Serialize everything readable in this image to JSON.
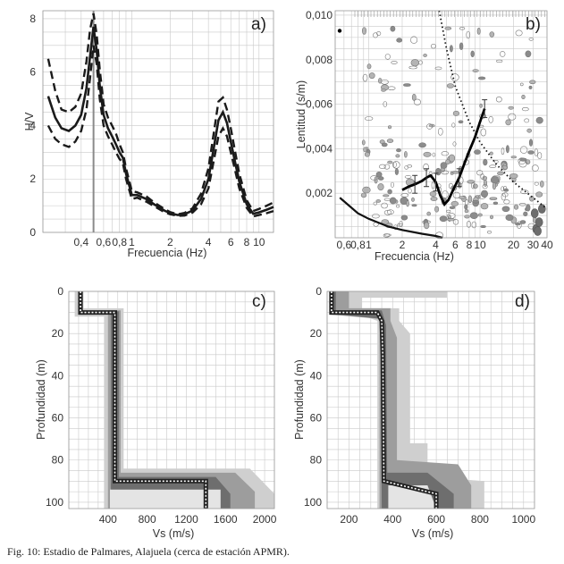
{
  "caption": "Fig. 10: Estadio de Palmares, Alajuela (cerca de estación APMR).",
  "chart_data": [
    {
      "type": "line",
      "panel_label": "a)",
      "xlabel": "Frecuencia (Hz)",
      "ylabel": "H/V",
      "xscale": "log",
      "xlim": [
        0.2,
        13
      ],
      "ylim": [
        0,
        8.3
      ],
      "xticks": [
        0.4,
        0.6,
        0.8,
        1,
        2,
        4,
        6,
        8,
        10
      ],
      "xtick_labels": [
        "0,4",
        "0,6",
        "0,8",
        "1",
        "2",
        "4",
        "6",
        "8",
        "10"
      ],
      "yticks": [
        0,
        2,
        4,
        6,
        8
      ],
      "ytick_labels": [
        "0",
        "2",
        "4",
        "6",
        "8"
      ],
      "marker_frequency": 0.5,
      "x": [
        0.22,
        0.25,
        0.28,
        0.32,
        0.36,
        0.4,
        0.44,
        0.47,
        0.5,
        0.53,
        0.56,
        0.6,
        0.65,
        0.7,
        0.75,
        0.8,
        0.85,
        0.9,
        1.0,
        1.1,
        1.3,
        1.5,
        1.8,
        2.0,
        2.3,
        2.6,
        3.0,
        3.5,
        4.0,
        4.5,
        4.8,
        5.2,
        5.6,
        6.0,
        6.5,
        7.0,
        8.0,
        9.0,
        10.0,
        11.5,
        13.0
      ],
      "series": [
        {
          "line": "solid",
          "values": [
            5.1,
            4.3,
            3.9,
            3.8,
            4.0,
            4.4,
            5.4,
            6.6,
            7.7,
            6.8,
            5.5,
            4.4,
            3.9,
            3.6,
            3.3,
            3.0,
            2.8,
            2.2,
            1.4,
            1.4,
            1.25,
            1.05,
            0.82,
            0.72,
            0.65,
            0.68,
            0.82,
            1.25,
            2.0,
            3.4,
            4.2,
            4.5,
            4.1,
            3.4,
            2.6,
            1.9,
            1.05,
            0.7,
            0.75,
            0.85,
            0.95
          ]
        },
        {
          "line": "dashed",
          "values": [
            6.5,
            5.3,
            4.6,
            4.5,
            4.7,
            5.2,
            6.4,
            7.6,
            8.2,
            7.4,
            6.1,
            4.8,
            4.3,
            4.0,
            3.7,
            3.3,
            3.0,
            2.4,
            1.55,
            1.5,
            1.35,
            1.12,
            0.88,
            0.76,
            0.68,
            0.73,
            0.9,
            1.45,
            2.4,
            4.0,
            4.9,
            5.05,
            4.6,
            3.9,
            3.0,
            2.2,
            1.2,
            0.8,
            0.88,
            1.0,
            1.12
          ]
        },
        {
          "line": "dashed",
          "values": [
            4.0,
            3.5,
            3.3,
            3.2,
            3.4,
            3.8,
            4.6,
            5.8,
            7.0,
            6.3,
            5.0,
            4.0,
            3.6,
            3.3,
            3.0,
            2.75,
            2.6,
            2.0,
            1.25,
            1.3,
            1.15,
            0.98,
            0.76,
            0.68,
            0.62,
            0.63,
            0.74,
            1.05,
            1.65,
            2.9,
            3.6,
            3.9,
            3.6,
            3.0,
            2.3,
            1.65,
            0.92,
            0.6,
            0.65,
            0.72,
            0.8
          ]
        }
      ]
    },
    {
      "type": "scatter",
      "panel_label": "b)",
      "xlabel": "Frecuencia (Hz)",
      "ylabel": "Lentitud (s/m)",
      "xscale": "log",
      "xlim": [
        0.5,
        40
      ],
      "ylim": [
        0,
        0.0102
      ],
      "xticks": [
        0.6,
        0.8,
        1,
        2,
        4,
        6,
        8,
        10,
        20,
        30,
        40
      ],
      "xtick_labels": [
        "0,6",
        "0,8",
        "1",
        "2",
        "4",
        "6",
        "8",
        "10",
        "20",
        "30",
        "40"
      ],
      "yticks": [
        0.002,
        0.004,
        0.006,
        0.008,
        0.01
      ],
      "ytick_labels": [
        "0,002",
        "0,004",
        "0,006",
        "0,008",
        "0,010"
      ],
      "dispersion_curve": {
        "x": [
          2.0,
          2.3,
          2.6,
          3.0,
          3.3,
          3.6,
          4.0,
          4.4,
          4.8,
          5.2,
          5.8,
          6.5,
          7.2,
          8.0,
          9.0,
          10.0,
          11.0
        ],
        "y": [
          0.00215,
          0.0023,
          0.0024,
          0.00255,
          0.0027,
          0.0028,
          0.0025,
          0.0019,
          0.0015,
          0.0017,
          0.0022,
          0.0027,
          0.0033,
          0.0039,
          0.0045,
          0.0052,
          0.0058
        ],
        "error_frequencies": [
          2.6,
          3.3,
          4.0,
          6.5,
          11.0
        ]
      },
      "limit_curve_solid": {
        "x": [
          0.55,
          0.8,
          1.0,
          1.5,
          2.0,
          3.0,
          4.0,
          4.6
        ],
        "y": [
          0.0018,
          0.0011,
          0.00085,
          0.0005,
          0.00035,
          0.00018,
          8e-05,
          0.0
        ]
      },
      "limit_curve_dotted": {
        "x": [
          4.3,
          5.0,
          6.0,
          8.0,
          10.0,
          14.0,
          20.0,
          30.0,
          40.0
        ],
        "y": [
          0.0102,
          0.0085,
          0.0068,
          0.0052,
          0.0043,
          0.0033,
          0.0025,
          0.0018,
          0.0013
        ]
      }
    },
    {
      "type": "line",
      "panel_label": "c)",
      "xlabel": "Vs (m/s)",
      "ylabel": "Profundidad (m)",
      "xlim": [
        0,
        2100
      ],
      "ylim": [
        103,
        0
      ],
      "xticks": [
        400,
        800,
        1200,
        1600,
        2000
      ],
      "xtick_labels": [
        "400",
        "800",
        "1200",
        "1600",
        "2000"
      ],
      "yticks": [
        0,
        20,
        40,
        60,
        80,
        100
      ],
      "ytick_labels": [
        "0",
        "20",
        "40",
        "60",
        "80",
        "100"
      ],
      "best_profile": {
        "vs": [
          120,
          120,
          470,
          470,
          1400,
          1400
        ],
        "depth": [
          0,
          10,
          10,
          90,
          90,
          103
        ]
      }
    },
    {
      "type": "line",
      "panel_label": "d)",
      "xlabel": "Vs (m/s)",
      "ylabel": "Profundidad (m)",
      "xlim": [
        100,
        1050
      ],
      "ylim": [
        103,
        0
      ],
      "xticks": [
        200,
        400,
        600,
        800,
        1000
      ],
      "xtick_labels": [
        "200",
        "400",
        "600",
        "800",
        "1000"
      ],
      "yticks": [
        0,
        20,
        40,
        60,
        80,
        100
      ],
      "ytick_labels": [
        "0",
        "20",
        "40",
        "60",
        "80",
        "100"
      ],
      "best_profile": {
        "vs": [
          120,
          120,
          330,
          350,
          355,
          360,
          600,
          600
        ],
        "depth": [
          0,
          10,
          10,
          14,
          30,
          90,
          96,
          103
        ]
      }
    }
  ]
}
